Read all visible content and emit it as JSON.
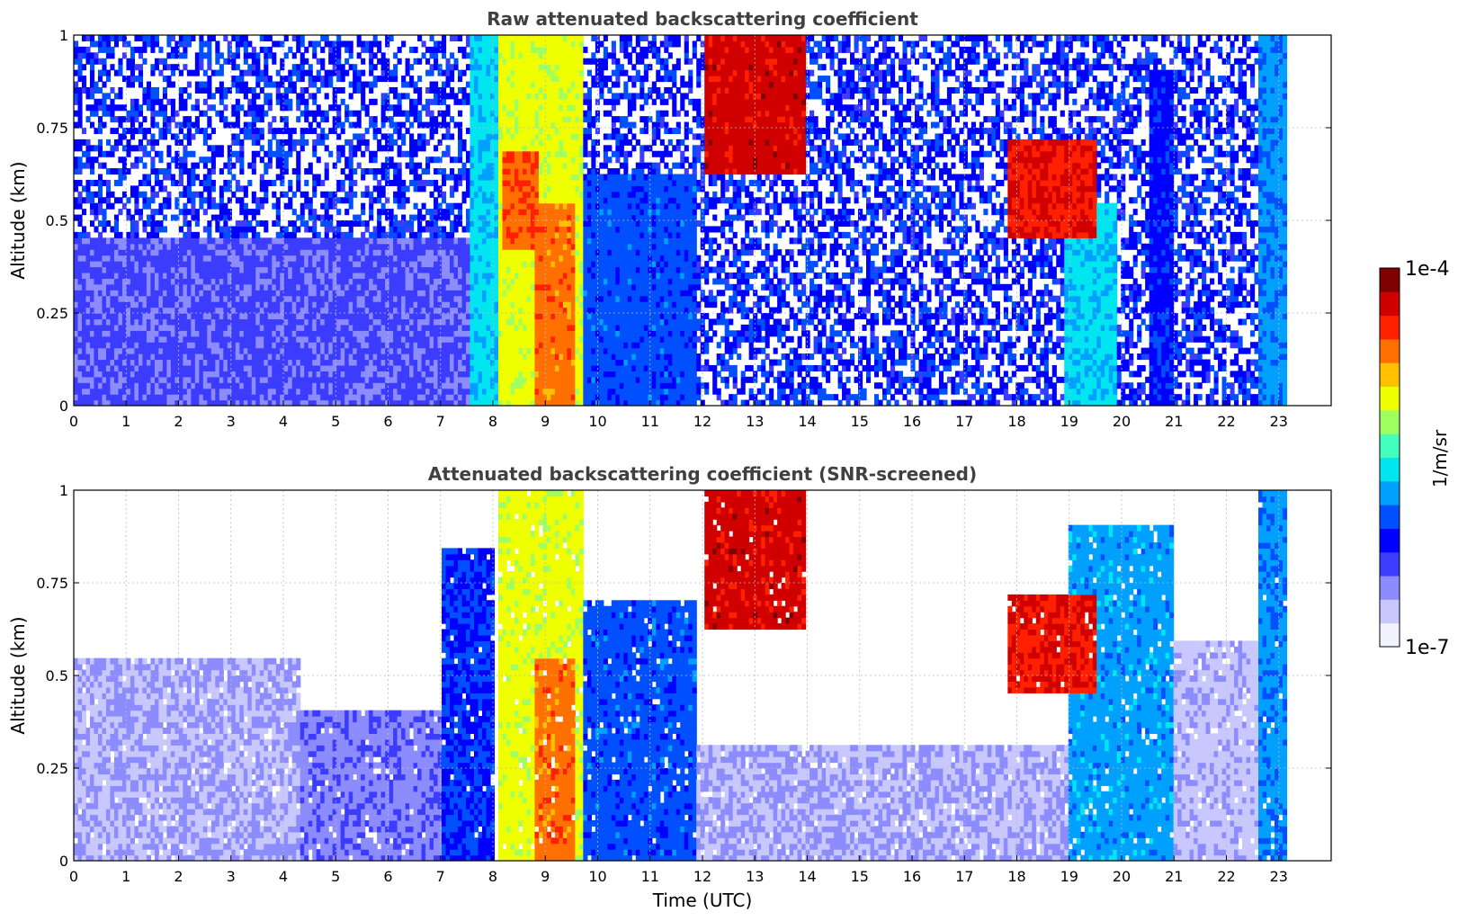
{
  "chart_data": [
    {
      "type": "heatmap",
      "title": "Raw attenuated backscattering coefficient",
      "xlabel": "",
      "ylabel": "Altitude (km)",
      "xlim": [
        0,
        24
      ],
      "ylim": [
        0,
        1
      ],
      "x_ticks": [
        "0",
        "1",
        "2",
        "3",
        "4",
        "5",
        "6",
        "7",
        "8",
        "9",
        "10",
        "11",
        "12",
        "13",
        "14",
        "15",
        "16",
        "17",
        "18",
        "19",
        "20",
        "21",
        "22",
        "23"
      ],
      "y_ticks": [
        "0",
        "0.25",
        "0.5",
        "0.75",
        "1"
      ],
      "y_tick_values": [
        0,
        0.25,
        0.5,
        0.75,
        1
      ],
      "grid": true,
      "data_end_time": 23.15,
      "screened": false,
      "features": [
        {
          "x": [
            0.0,
            8.0
          ],
          "y": [
            0.0,
            0.45
          ],
          "level": 0.18
        },
        {
          "x": [
            7.6,
            8.3
          ],
          "y": [
            0.0,
            1.0
          ],
          "level": 0.45
        },
        {
          "x": [
            8.1,
            9.7
          ],
          "y": [
            0.0,
            1.0
          ],
          "level": 0.66
        },
        {
          "x": [
            8.2,
            8.9
          ],
          "y": [
            0.42,
            0.68
          ],
          "level": 0.82
        },
        {
          "x": [
            8.8,
            9.6
          ],
          "y": [
            0.0,
            0.55
          ],
          "level": 0.8
        },
        {
          "x": [
            9.7,
            11.9
          ],
          "y": [
            0.0,
            0.62
          ],
          "level": 0.33
        },
        {
          "x": [
            12.0,
            14.0
          ],
          "y": [
            0.62,
            1.0
          ],
          "level": 0.93
        },
        {
          "x": [
            17.8,
            19.5
          ],
          "y": [
            0.45,
            0.72
          ],
          "level": 0.9
        },
        {
          "x": [
            18.9,
            19.9
          ],
          "y": [
            0.0,
            0.55
          ],
          "level": 0.45
        },
        {
          "x": [
            20.5,
            21.0
          ],
          "y": [
            0.0,
            0.9
          ],
          "level": 0.28
        },
        {
          "x": [
            22.6,
            23.15
          ],
          "y": [
            0.0,
            1.0
          ],
          "level": 0.38
        }
      ]
    },
    {
      "type": "heatmap",
      "title": "Attenuated backscattering coefficient (SNR-screened)",
      "xlabel": "Time (UTC)",
      "ylabel": "Altitude (km)",
      "xlim": [
        0,
        24
      ],
      "ylim": [
        0,
        1
      ],
      "x_ticks": [
        "0",
        "1",
        "2",
        "3",
        "4",
        "5",
        "6",
        "7",
        "8",
        "9",
        "10",
        "11",
        "12",
        "13",
        "14",
        "15",
        "16",
        "17",
        "18",
        "19",
        "20",
        "21",
        "22",
        "23"
      ],
      "y_ticks": [
        "0",
        "0.25",
        "0.5",
        "0.75",
        "1"
      ],
      "y_tick_values": [
        0,
        0.25,
        0.5,
        0.75,
        1
      ],
      "grid": true,
      "data_end_time": 23.15,
      "screened": true,
      "features": [
        {
          "x": [
            0.0,
            4.3
          ],
          "y": [
            0.0,
            0.55
          ],
          "level": 0.1
        },
        {
          "x": [
            4.3,
            7.0
          ],
          "y": [
            0.0,
            0.4
          ],
          "level": 0.15
        },
        {
          "x": [
            7.0,
            8.0
          ],
          "y": [
            0.0,
            0.85
          ],
          "level": 0.3
        },
        {
          "x": [
            8.1,
            9.7
          ],
          "y": [
            0.0,
            1.0
          ],
          "level": 0.66
        },
        {
          "x": [
            8.8,
            9.6
          ],
          "y": [
            0.0,
            0.55
          ],
          "level": 0.8
        },
        {
          "x": [
            9.7,
            11.9
          ],
          "y": [
            0.0,
            0.7
          ],
          "level": 0.33
        },
        {
          "x": [
            12.0,
            14.0
          ],
          "y": [
            0.62,
            1.0
          ],
          "level": 0.93
        },
        {
          "x": [
            11.9,
            19.0
          ],
          "y": [
            0.0,
            0.32
          ],
          "level": 0.1
        },
        {
          "x": [
            17.8,
            19.5
          ],
          "y": [
            0.45,
            0.72
          ],
          "level": 0.9
        },
        {
          "x": [
            19.0,
            21.0
          ],
          "y": [
            0.0,
            0.9
          ],
          "level": 0.4
        },
        {
          "x": [
            21.0,
            22.6
          ],
          "y": [
            0.0,
            0.6
          ],
          "level": 0.08
        },
        {
          "x": [
            22.6,
            23.15
          ],
          "y": [
            0.0,
            1.0
          ],
          "level": 0.38
        }
      ]
    }
  ],
  "colorbar": {
    "label": "1/m/sr",
    "max_label": "1e-4",
    "min_label": "1e-7",
    "colors": [
      "#f2f2ff",
      "#c8c8ff",
      "#8c8cff",
      "#3c3cff",
      "#0000ff",
      "#0050ff",
      "#00a0ff",
      "#00e6f0",
      "#40ffbf",
      "#a0ff60",
      "#f0ff00",
      "#ffc000",
      "#ff7000",
      "#ff2000",
      "#d00000",
      "#800000"
    ]
  },
  "colors": {
    "title": "#404040",
    "axes": "#000000",
    "grid": "#bbbbbb",
    "background": "#ffffff"
  }
}
